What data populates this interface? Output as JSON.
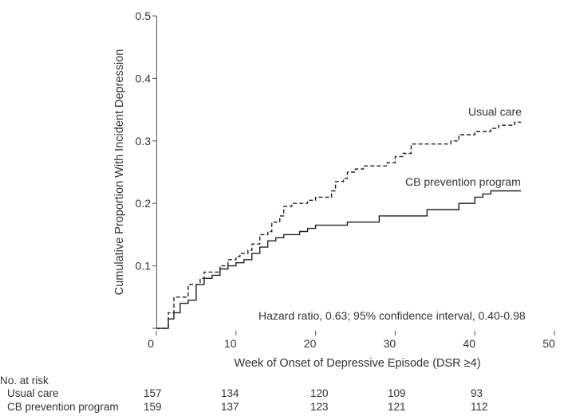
{
  "chart_data": {
    "type": "line",
    "xlabel": "Week of Onset of Depressive Episode (DSR ≥4)",
    "ylabel": "Cumulative Proportion With Incident Depression",
    "xlim": [
      0,
      50
    ],
    "ylim": [
      0,
      0.5
    ],
    "x_ticks": [
      "0",
      "10",
      "20",
      "30",
      "40",
      "50"
    ],
    "y_ticks": [
      "0.1",
      "0.2",
      "0.3",
      "0.4",
      "0.5"
    ],
    "grid": false,
    "annotation": "Hazard ratio, 0.63; 95% confidence interval, 0.40-0.98",
    "series": [
      {
        "name": "Usual care",
        "style": "dashed",
        "points": [
          [
            0,
            0
          ],
          [
            1,
            0
          ],
          [
            1.5,
            0.025
          ],
          [
            2.2,
            0.05
          ],
          [
            3.5,
            0.05
          ],
          [
            4,
            0.07
          ],
          [
            5,
            0.07
          ],
          [
            5.5,
            0.08
          ],
          [
            6,
            0.09
          ],
          [
            7,
            0.09
          ],
          [
            8,
            0.1
          ],
          [
            9,
            0.11
          ],
          [
            10,
            0.115
          ],
          [
            10.5,
            0.12
          ],
          [
            11.5,
            0.125
          ],
          [
            12,
            0.135
          ],
          [
            13,
            0.15
          ],
          [
            14,
            0.155
          ],
          [
            14.5,
            0.17
          ],
          [
            15.5,
            0.18
          ],
          [
            16,
            0.195
          ],
          [
            17,
            0.2
          ],
          [
            19,
            0.205
          ],
          [
            20,
            0.21
          ],
          [
            22,
            0.22
          ],
          [
            22.5,
            0.235
          ],
          [
            23.5,
            0.24
          ],
          [
            24,
            0.25
          ],
          [
            25,
            0.255
          ],
          [
            26,
            0.26
          ],
          [
            29,
            0.265
          ],
          [
            30,
            0.275
          ],
          [
            31,
            0.28
          ],
          [
            32,
            0.295
          ],
          [
            36.5,
            0.295
          ],
          [
            37,
            0.3
          ],
          [
            38,
            0.31
          ],
          [
            40,
            0.315
          ],
          [
            42,
            0.32
          ],
          [
            43,
            0.325
          ],
          [
            45,
            0.33
          ],
          [
            45.8,
            0.33
          ]
        ]
      },
      {
        "name": "CB prevention program",
        "style": "solid",
        "points": [
          [
            0,
            0
          ],
          [
            1,
            0
          ],
          [
            1.5,
            0.015
          ],
          [
            2.2,
            0.025
          ],
          [
            3,
            0.04
          ],
          [
            4,
            0.045
          ],
          [
            5,
            0.07
          ],
          [
            6,
            0.08
          ],
          [
            7,
            0.085
          ],
          [
            8,
            0.095
          ],
          [
            9,
            0.1
          ],
          [
            10,
            0.105
          ],
          [
            11,
            0.11
          ],
          [
            12,
            0.12
          ],
          [
            13,
            0.13
          ],
          [
            14,
            0.14
          ],
          [
            15,
            0.145
          ],
          [
            16,
            0.15
          ],
          [
            18,
            0.155
          ],
          [
            19,
            0.16
          ],
          [
            20,
            0.165
          ],
          [
            24,
            0.17
          ],
          [
            28,
            0.18
          ],
          [
            34,
            0.19
          ],
          [
            38,
            0.2
          ],
          [
            40,
            0.21
          ],
          [
            41,
            0.215
          ],
          [
            42,
            0.22
          ],
          [
            45.8,
            0.22
          ]
        ]
      }
    ]
  },
  "labels": {
    "usual_care": "Usual care",
    "cb_program": "CB prevention program"
  },
  "risk_table": {
    "title": "No. at risk",
    "rows": [
      {
        "label": "Usual care",
        "values": [
          "157",
          "134",
          "120",
          "109",
          "93"
        ]
      },
      {
        "label": "CB prevention program",
        "values": [
          "159",
          "137",
          "123",
          "121",
          "112"
        ]
      }
    ]
  }
}
